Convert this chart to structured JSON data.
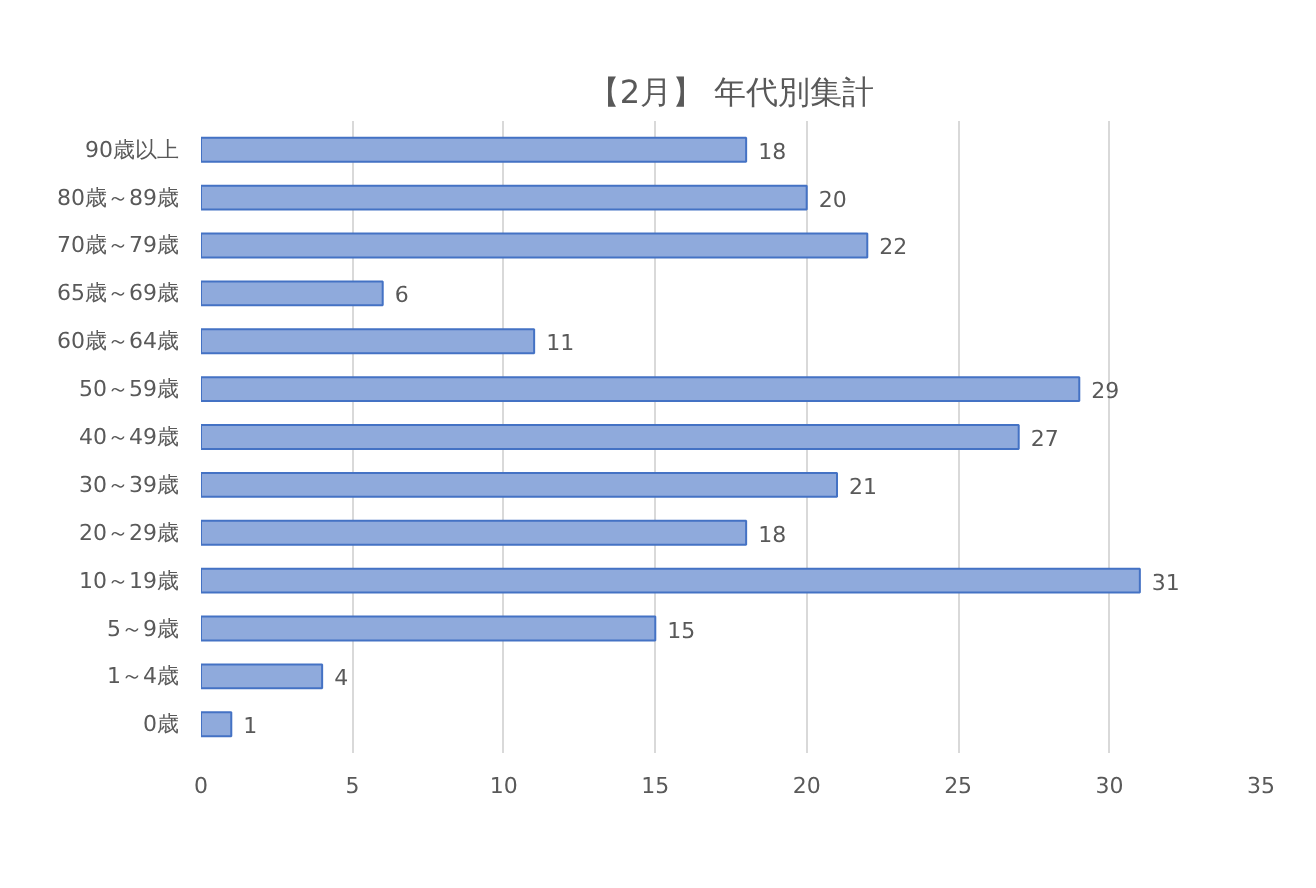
{
  "chart_data": {
    "type": "bar",
    "orientation": "horizontal",
    "title": "【2月】 年代別集計",
    "categories": [
      "90歳以上",
      "80歳～89歳",
      "70歳～79歳",
      "65歳～69歳",
      "60歳～64歳",
      "50～59歳",
      "40～49歳",
      "30～39歳",
      "20～29歳",
      "10～19歳",
      "5～9歳",
      "1～4歳",
      "0歳"
    ],
    "values": [
      18,
      20,
      22,
      6,
      11,
      29,
      27,
      21,
      18,
      31,
      15,
      4,
      1
    ],
    "color": "#8faadc",
    "xlim": [
      0,
      35
    ],
    "xticks": [
      0,
      5,
      10,
      15,
      20,
      25,
      30,
      35
    ],
    "grid": "x",
    "data_labels": true
  }
}
